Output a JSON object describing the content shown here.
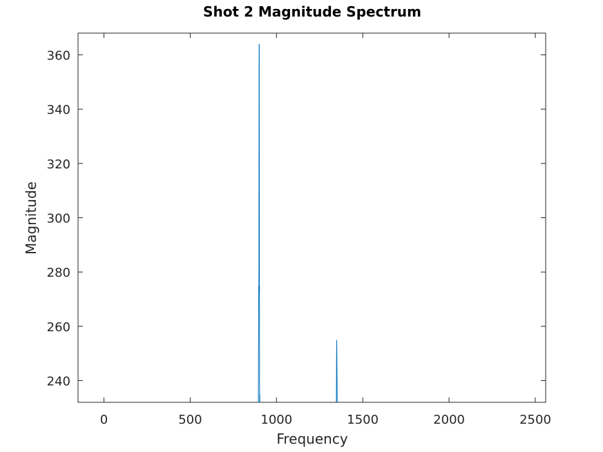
{
  "chart_data": {
    "type": "line",
    "title": "Shot 2 Magnitude Spectrum",
    "xlabel": "Frequency",
    "ylabel": "Magnitude",
    "xlim": [
      -150,
      2560
    ],
    "ylim": [
      232,
      368
    ],
    "xticks": [
      0,
      500,
      1000,
      1500,
      2000,
      2500
    ],
    "yticks": [
      240,
      260,
      280,
      300,
      320,
      340,
      360
    ],
    "grid": false,
    "series": [
      {
        "color": "#0072BD",
        "x": [
          895,
          896,
          897,
          898,
          899,
          900,
          901,
          902,
          903,
          904,
          1347,
          1348,
          1349,
          1350,
          1351,
          1352
        ],
        "y": [
          230,
          253,
          275,
          272,
          356,
          364,
          300,
          228,
          235,
          230,
          230,
          248,
          255,
          249,
          240,
          230
        ]
      }
    ],
    "style": {
      "axis_color": "#262626",
      "title_color": "#000000",
      "background": "#ffffff"
    }
  }
}
